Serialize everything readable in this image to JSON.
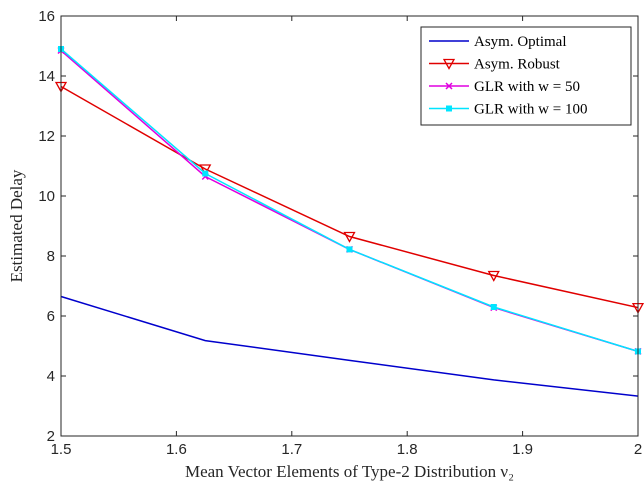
{
  "chart_data": {
    "type": "line",
    "title": "",
    "xlabel": "Mean Vector Elements of Type-2 Distribution ν₂",
    "ylabel": "Estimated Delay",
    "xlim": [
      1.5,
      2.0
    ],
    "ylim": [
      2,
      16
    ],
    "x_ticks": [
      1.5,
      1.6,
      1.7,
      1.8,
      1.9,
      2.0
    ],
    "x_tick_labels": [
      "1.5",
      "1.6",
      "1.7",
      "1.8",
      "1.9",
      "2"
    ],
    "y_ticks": [
      2,
      4,
      6,
      8,
      10,
      12,
      14,
      16
    ],
    "y_tick_labels": [
      "2",
      "4",
      "6",
      "8",
      "10",
      "12",
      "14",
      "16"
    ],
    "grid": false,
    "legend_position": "top-right",
    "x": [
      1.5,
      1.625,
      1.75,
      1.875,
      2.0
    ],
    "series": [
      {
        "name": "Asym. Optimal",
        "color": "#0000cc",
        "marker": "none",
        "values": [
          6.65,
          5.18,
          4.52,
          3.87,
          3.33
        ]
      },
      {
        "name": "Asym. Robust",
        "color": "#e00000",
        "marker": "triangle-down",
        "values": [
          13.65,
          10.9,
          8.65,
          7.35,
          6.28
        ]
      },
      {
        "name": "GLR with w = 50",
        "color": "#e000e0",
        "marker": "x",
        "values": [
          14.85,
          10.65,
          8.22,
          6.28,
          4.82
        ]
      },
      {
        "name": "GLR with w = 100",
        "color": "#00e5ff",
        "marker": "square",
        "values": [
          14.9,
          10.75,
          8.22,
          6.3,
          4.82
        ]
      }
    ]
  }
}
